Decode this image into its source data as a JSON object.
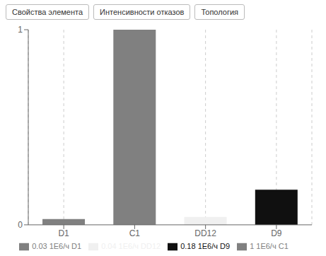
{
  "chart_data": {
    "type": "bar",
    "annotations": [
      "Свойства элемента",
      "Интенсивности отказов",
      "Топология"
    ],
    "categories": [
      "D1",
      "C1",
      "DD12",
      "D9"
    ],
    "series": [
      {
        "name": "0.03 1E6/ч D1",
        "color": "#808080",
        "values": [
          0.03,
          null,
          null,
          null
        ]
      },
      {
        "name": "1 1E6/ч C1",
        "color": "#808080",
        "values": [
          null,
          1.0,
          null,
          null
        ]
      },
      {
        "name": "0.04 1E6/ч DD12",
        "color": "#f0f0f0",
        "values": [
          null,
          null,
          0.04,
          null
        ]
      },
      {
        "name": "0.18 1E6/ч D9",
        "color": "#101010",
        "values": [
          null,
          null,
          null,
          0.18
        ]
      }
    ],
    "stacked": true,
    "ylim": [
      0,
      1.0
    ],
    "yticks": [
      0,
      1
    ],
    "grid": true,
    "legend": "bottom"
  }
}
